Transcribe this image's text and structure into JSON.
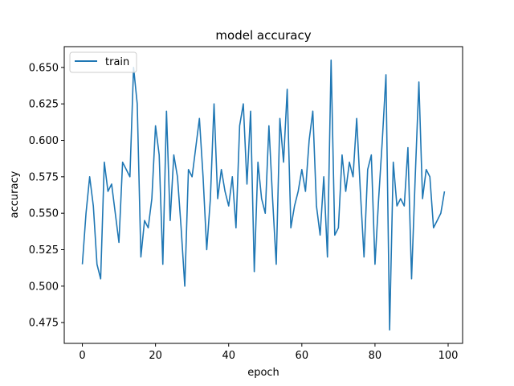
{
  "chart_data": {
    "type": "line",
    "title": "model accuracy",
    "xlabel": "epoch",
    "ylabel": "accuracy",
    "xlim": [
      -4.95,
      103.95
    ],
    "ylim": [
      0.46075,
      0.66425
    ],
    "xticks": [
      0,
      20,
      40,
      60,
      80,
      100
    ],
    "xtick_labels": [
      "0",
      "20",
      "40",
      "60",
      "80",
      "100"
    ],
    "yticks": [
      0.475,
      0.5,
      0.525,
      0.55,
      0.575,
      0.6,
      0.625,
      0.65
    ],
    "ytick_labels": [
      "0.475",
      "0.500",
      "0.525",
      "0.550",
      "0.575",
      "0.600",
      "0.625",
      "0.650"
    ],
    "legend_position": "upper-left",
    "series": [
      {
        "name": "train",
        "color": "#1f77b4",
        "x": [
          0,
          1,
          2,
          3,
          4,
          5,
          6,
          7,
          8,
          9,
          10,
          11,
          12,
          13,
          14,
          15,
          16,
          17,
          18,
          19,
          20,
          21,
          22,
          23,
          24,
          25,
          26,
          27,
          28,
          29,
          30,
          31,
          32,
          33,
          34,
          35,
          36,
          37,
          38,
          39,
          40,
          41,
          42,
          43,
          44,
          45,
          46,
          47,
          48,
          49,
          50,
          51,
          52,
          53,
          54,
          55,
          56,
          57,
          58,
          59,
          60,
          61,
          62,
          63,
          64,
          65,
          66,
          67,
          68,
          69,
          70,
          71,
          72,
          73,
          74,
          75,
          76,
          77,
          78,
          79,
          80,
          81,
          82,
          83,
          84,
          85,
          86,
          87,
          88,
          89,
          90,
          91,
          92,
          93,
          94,
          95,
          96,
          97,
          98,
          99
        ],
        "values": [
          0.515,
          0.55,
          0.575,
          0.555,
          0.515,
          0.505,
          0.585,
          0.565,
          0.57,
          0.55,
          0.53,
          0.585,
          0.58,
          0.575,
          0.65,
          0.625,
          0.52,
          0.545,
          0.54,
          0.56,
          0.61,
          0.59,
          0.515,
          0.62,
          0.545,
          0.59,
          0.575,
          0.54,
          0.5,
          0.58,
          0.575,
          0.595,
          0.615,
          0.575,
          0.525,
          0.56,
          0.625,
          0.56,
          0.58,
          0.565,
          0.555,
          0.575,
          0.54,
          0.61,
          0.625,
          0.57,
          0.62,
          0.51,
          0.585,
          0.56,
          0.55,
          0.61,
          0.56,
          0.515,
          0.615,
          0.585,
          0.635,
          0.54,
          0.555,
          0.565,
          0.58,
          0.565,
          0.6,
          0.62,
          0.555,
          0.535,
          0.575,
          0.52,
          0.655,
          0.535,
          0.54,
          0.59,
          0.565,
          0.585,
          0.575,
          0.615,
          0.565,
          0.52,
          0.58,
          0.59,
          0.515,
          0.56,
          0.6,
          0.645,
          0.47,
          0.585,
          0.555,
          0.56,
          0.555,
          0.595,
          0.505,
          0.575,
          0.64,
          0.56,
          0.58,
          0.575,
          0.54,
          0.545,
          0.55,
          0.565
        ]
      }
    ]
  }
}
